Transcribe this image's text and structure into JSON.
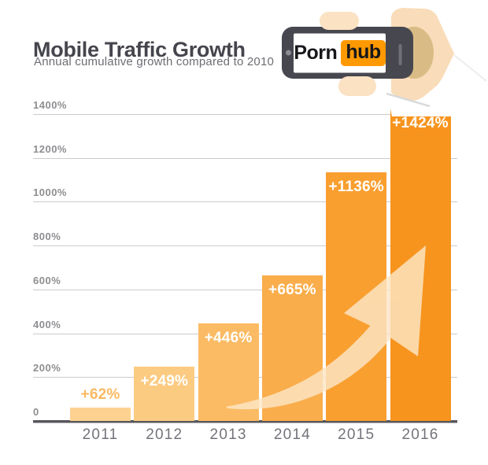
{
  "header": {
    "title": "Mobile Traffic Growth",
    "subtitle": "Annual cumulative growth compared to 2010"
  },
  "logo": {
    "left": "Porn",
    "right": "hub",
    "box_color": "#FF9900"
  },
  "chart_data": {
    "type": "bar",
    "title": "Mobile Traffic Growth",
    "subtitle": "Annual cumulative growth compared to 2010",
    "categories": [
      "2011",
      "2012",
      "2013",
      "2014",
      "2015",
      "2016"
    ],
    "values": [
      62,
      249,
      446,
      665,
      1136,
      1424
    ],
    "bar_labels": [
      "+62%",
      "+249%",
      "+446%",
      "+665%",
      "+1136%",
      "+1424%"
    ],
    "bar_colors": [
      "#FDD291",
      "#FCCB82",
      "#FBBB64",
      "#FAAD4B",
      "#F99F30",
      "#F7941E"
    ],
    "label_positions": [
      "above",
      "inside",
      "inside",
      "inside",
      "inside",
      "inside"
    ],
    "outside_label_color": "#FBB960",
    "inside_label_color": "#FFFFFF",
    "y_ticks": [
      {
        "label": "1400%",
        "value": 1400
      },
      {
        "label": "1200%",
        "value": 1200
      },
      {
        "label": "1000%",
        "value": 1000
      },
      {
        "label": "800%",
        "value": 800
      },
      {
        "label": "600%",
        "value": 600
      },
      {
        "label": "400%",
        "value": 400
      },
      {
        "label": "200%",
        "value": 200
      },
      {
        "label": "0",
        "value": 0
      }
    ],
    "ylim": [
      0,
      1400
    ],
    "grid": true,
    "legend": "none",
    "gridline_color": "#CBCBCB",
    "baseline_color": "#57575C",
    "arrow_color": "#FCE6C6"
  }
}
